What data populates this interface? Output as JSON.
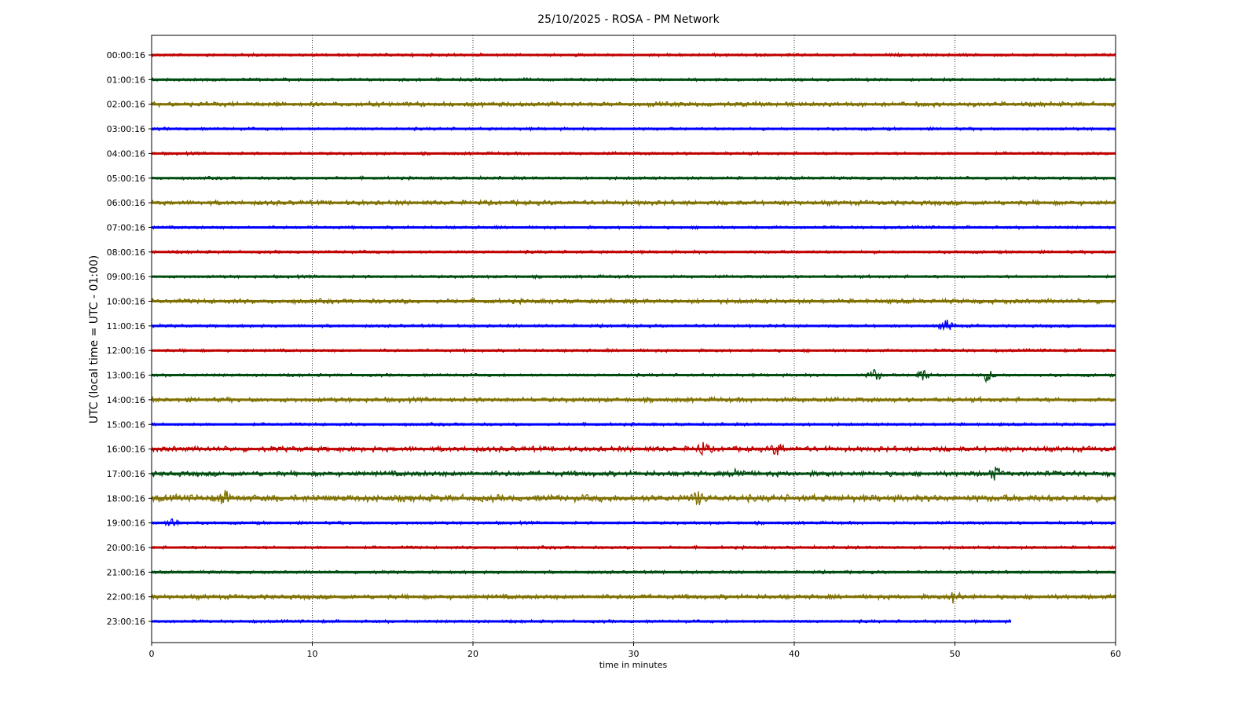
{
  "chart_data": {
    "type": "line",
    "title": "25/10/2025 - ROSA - PM Network",
    "xlabel": "time in minutes",
    "ylabel": "UTC (local time = UTC - 01:00)",
    "xlim": [
      0,
      60
    ],
    "x_ticks": [
      "0",
      "10",
      "20",
      "30",
      "40",
      "50",
      "60"
    ],
    "grid": "vertical dotted",
    "colors": [
      "#c00000",
      "#004d10",
      "#7f7000",
      "#0000ff"
    ],
    "rows": [
      {
        "label": "00:00:16",
        "end": 60,
        "events": []
      },
      {
        "label": "01:00:16",
        "end": 60,
        "events": []
      },
      {
        "label": "02:00:16",
        "end": 60,
        "events": []
      },
      {
        "label": "03:00:16",
        "end": 60,
        "events": []
      },
      {
        "label": "04:00:16",
        "end": 60,
        "events": []
      },
      {
        "label": "05:00:16",
        "end": 60,
        "events": []
      },
      {
        "label": "06:00:16",
        "end": 60,
        "events": []
      },
      {
        "label": "07:00:16",
        "end": 60,
        "events": []
      },
      {
        "label": "08:00:16",
        "end": 60,
        "events": []
      },
      {
        "label": "09:00:16",
        "end": 60,
        "events": []
      },
      {
        "label": "10:00:16",
        "end": 60,
        "events": []
      },
      {
        "label": "11:00:16",
        "end": 60,
        "events": [
          49.5
        ]
      },
      {
        "label": "12:00:16",
        "end": 60,
        "events": []
      },
      {
        "label": "13:00:16",
        "end": 60,
        "events": [
          45,
          48,
          52
        ]
      },
      {
        "label": "14:00:16",
        "end": 60,
        "events": []
      },
      {
        "label": "15:00:16",
        "end": 60,
        "events": []
      },
      {
        "label": "16:00:16",
        "end": 60,
        "events": [
          34.3,
          39
        ]
      },
      {
        "label": "17:00:16",
        "end": 60,
        "events": [
          36.5,
          52.5
        ]
      },
      {
        "label": "18:00:16",
        "end": 60,
        "events": [
          4.5,
          34
        ]
      },
      {
        "label": "19:00:16",
        "end": 60,
        "events": [
          1.3
        ]
      },
      {
        "label": "20:00:16",
        "end": 60,
        "events": []
      },
      {
        "label": "21:00:16",
        "end": 60,
        "events": []
      },
      {
        "label": "22:00:16",
        "end": 60,
        "events": [
          50
        ]
      },
      {
        "label": "23:00:16",
        "end": 53.5,
        "events": []
      }
    ]
  }
}
